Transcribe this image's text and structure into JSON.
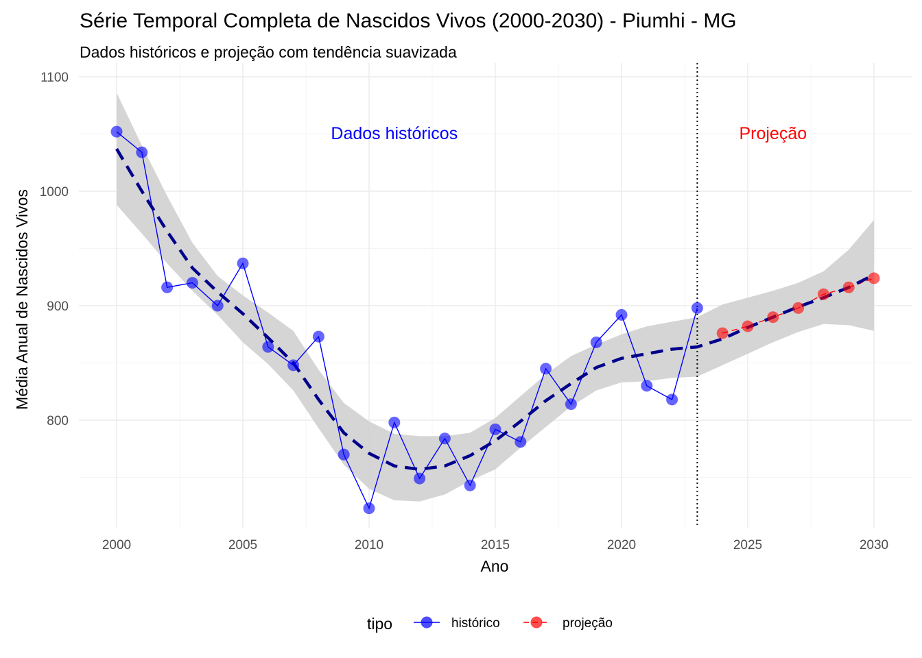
{
  "chart_data": {
    "type": "line",
    "title": "Série Temporal Completa de Nascidos Vivos (2000-2030) -  Piumhi - MG",
    "subtitle": "Dados históricos e projeção com tendência suavizada",
    "xlabel": "Ano",
    "ylabel": "Média Anual de Nascidos Vivos",
    "xlim": [
      1999,
      2031
    ],
    "ylim": [
      707,
      1100
    ],
    "x_ticks": [
      2000,
      2005,
      2010,
      2015,
      2020,
      2025,
      2030
    ],
    "x_tick_labels": [
      "2000",
      "2005",
      "2010",
      "2015",
      "2020",
      "2025",
      "2030"
    ],
    "y_ticks": [
      800,
      900,
      1000,
      1100
    ],
    "y_tick_labels": [
      "800",
      "900",
      "1000",
      "1100"
    ],
    "grid": true,
    "divider_x": 2023,
    "annotations": [
      {
        "text": "Dados históricos",
        "x": 2011,
        "y": 1051,
        "color": "#0000ff"
      },
      {
        "text": "Projeção",
        "x": 2026,
        "y": 1051,
        "color": "#ff0000"
      }
    ],
    "legend": {
      "title": "tipo",
      "position": "bottom",
      "items": [
        {
          "label": "histórico",
          "color": "#0000ff"
        },
        {
          "label": "projeção",
          "color": "#ff0000"
        }
      ]
    },
    "series": [
      {
        "name": "histórico",
        "color": "#0000ff",
        "x": [
          2000,
          2001,
          2002,
          2003,
          2004,
          2005,
          2006,
          2007,
          2008,
          2009,
          2010,
          2011,
          2012,
          2013,
          2014,
          2015,
          2016,
          2017,
          2018,
          2019,
          2020,
          2021,
          2022,
          2023
        ],
        "y": [
          1052,
          1034,
          916,
          920,
          900,
          937,
          864,
          848,
          873,
          770,
          723,
          798,
          749,
          784,
          743,
          792,
          781,
          845,
          814,
          868,
          892,
          830,
          818,
          898
        ]
      },
      {
        "name": "projeção",
        "color": "#ff0000",
        "x": [
          2024,
          2025,
          2026,
          2027,
          2028,
          2029,
          2030
        ],
        "y": [
          876,
          882,
          890,
          898,
          910,
          916,
          924
        ]
      }
    ],
    "trend": {
      "color": "#00008b",
      "x": [
        2000,
        2001,
        2002,
        2003,
        2004,
        2005,
        2006,
        2007,
        2008,
        2009,
        2010,
        2011,
        2012,
        2013,
        2014,
        2015,
        2016,
        2017,
        2018,
        2019,
        2020,
        2021,
        2022,
        2023,
        2024,
        2025,
        2026,
        2027,
        2028,
        2029,
        2030
      ],
      "y": [
        1037,
        1000,
        965,
        933,
        912,
        893,
        872,
        850,
        818,
        789,
        771,
        760,
        757,
        760,
        769,
        782,
        799,
        817,
        832,
        846,
        854,
        858,
        862,
        864,
        871,
        881,
        890,
        899,
        907,
        916,
        927
      ],
      "lower": [
        988,
        963,
        937,
        913,
        892,
        868,
        849,
        826,
        793,
        761,
        740,
        730,
        729,
        735,
        747,
        757,
        776,
        794,
        812,
        826,
        833,
        834,
        837,
        838,
        848,
        858,
        868,
        877,
        884,
        883,
        878
      ],
      "upper": [
        1086,
        1040,
        996,
        955,
        926,
        909,
        894,
        878,
        844,
        815,
        799,
        788,
        786,
        786,
        789,
        802,
        821,
        840,
        856,
        866,
        875,
        882,
        886,
        890,
        901,
        907,
        913,
        920,
        930,
        949,
        975
      ]
    }
  }
}
